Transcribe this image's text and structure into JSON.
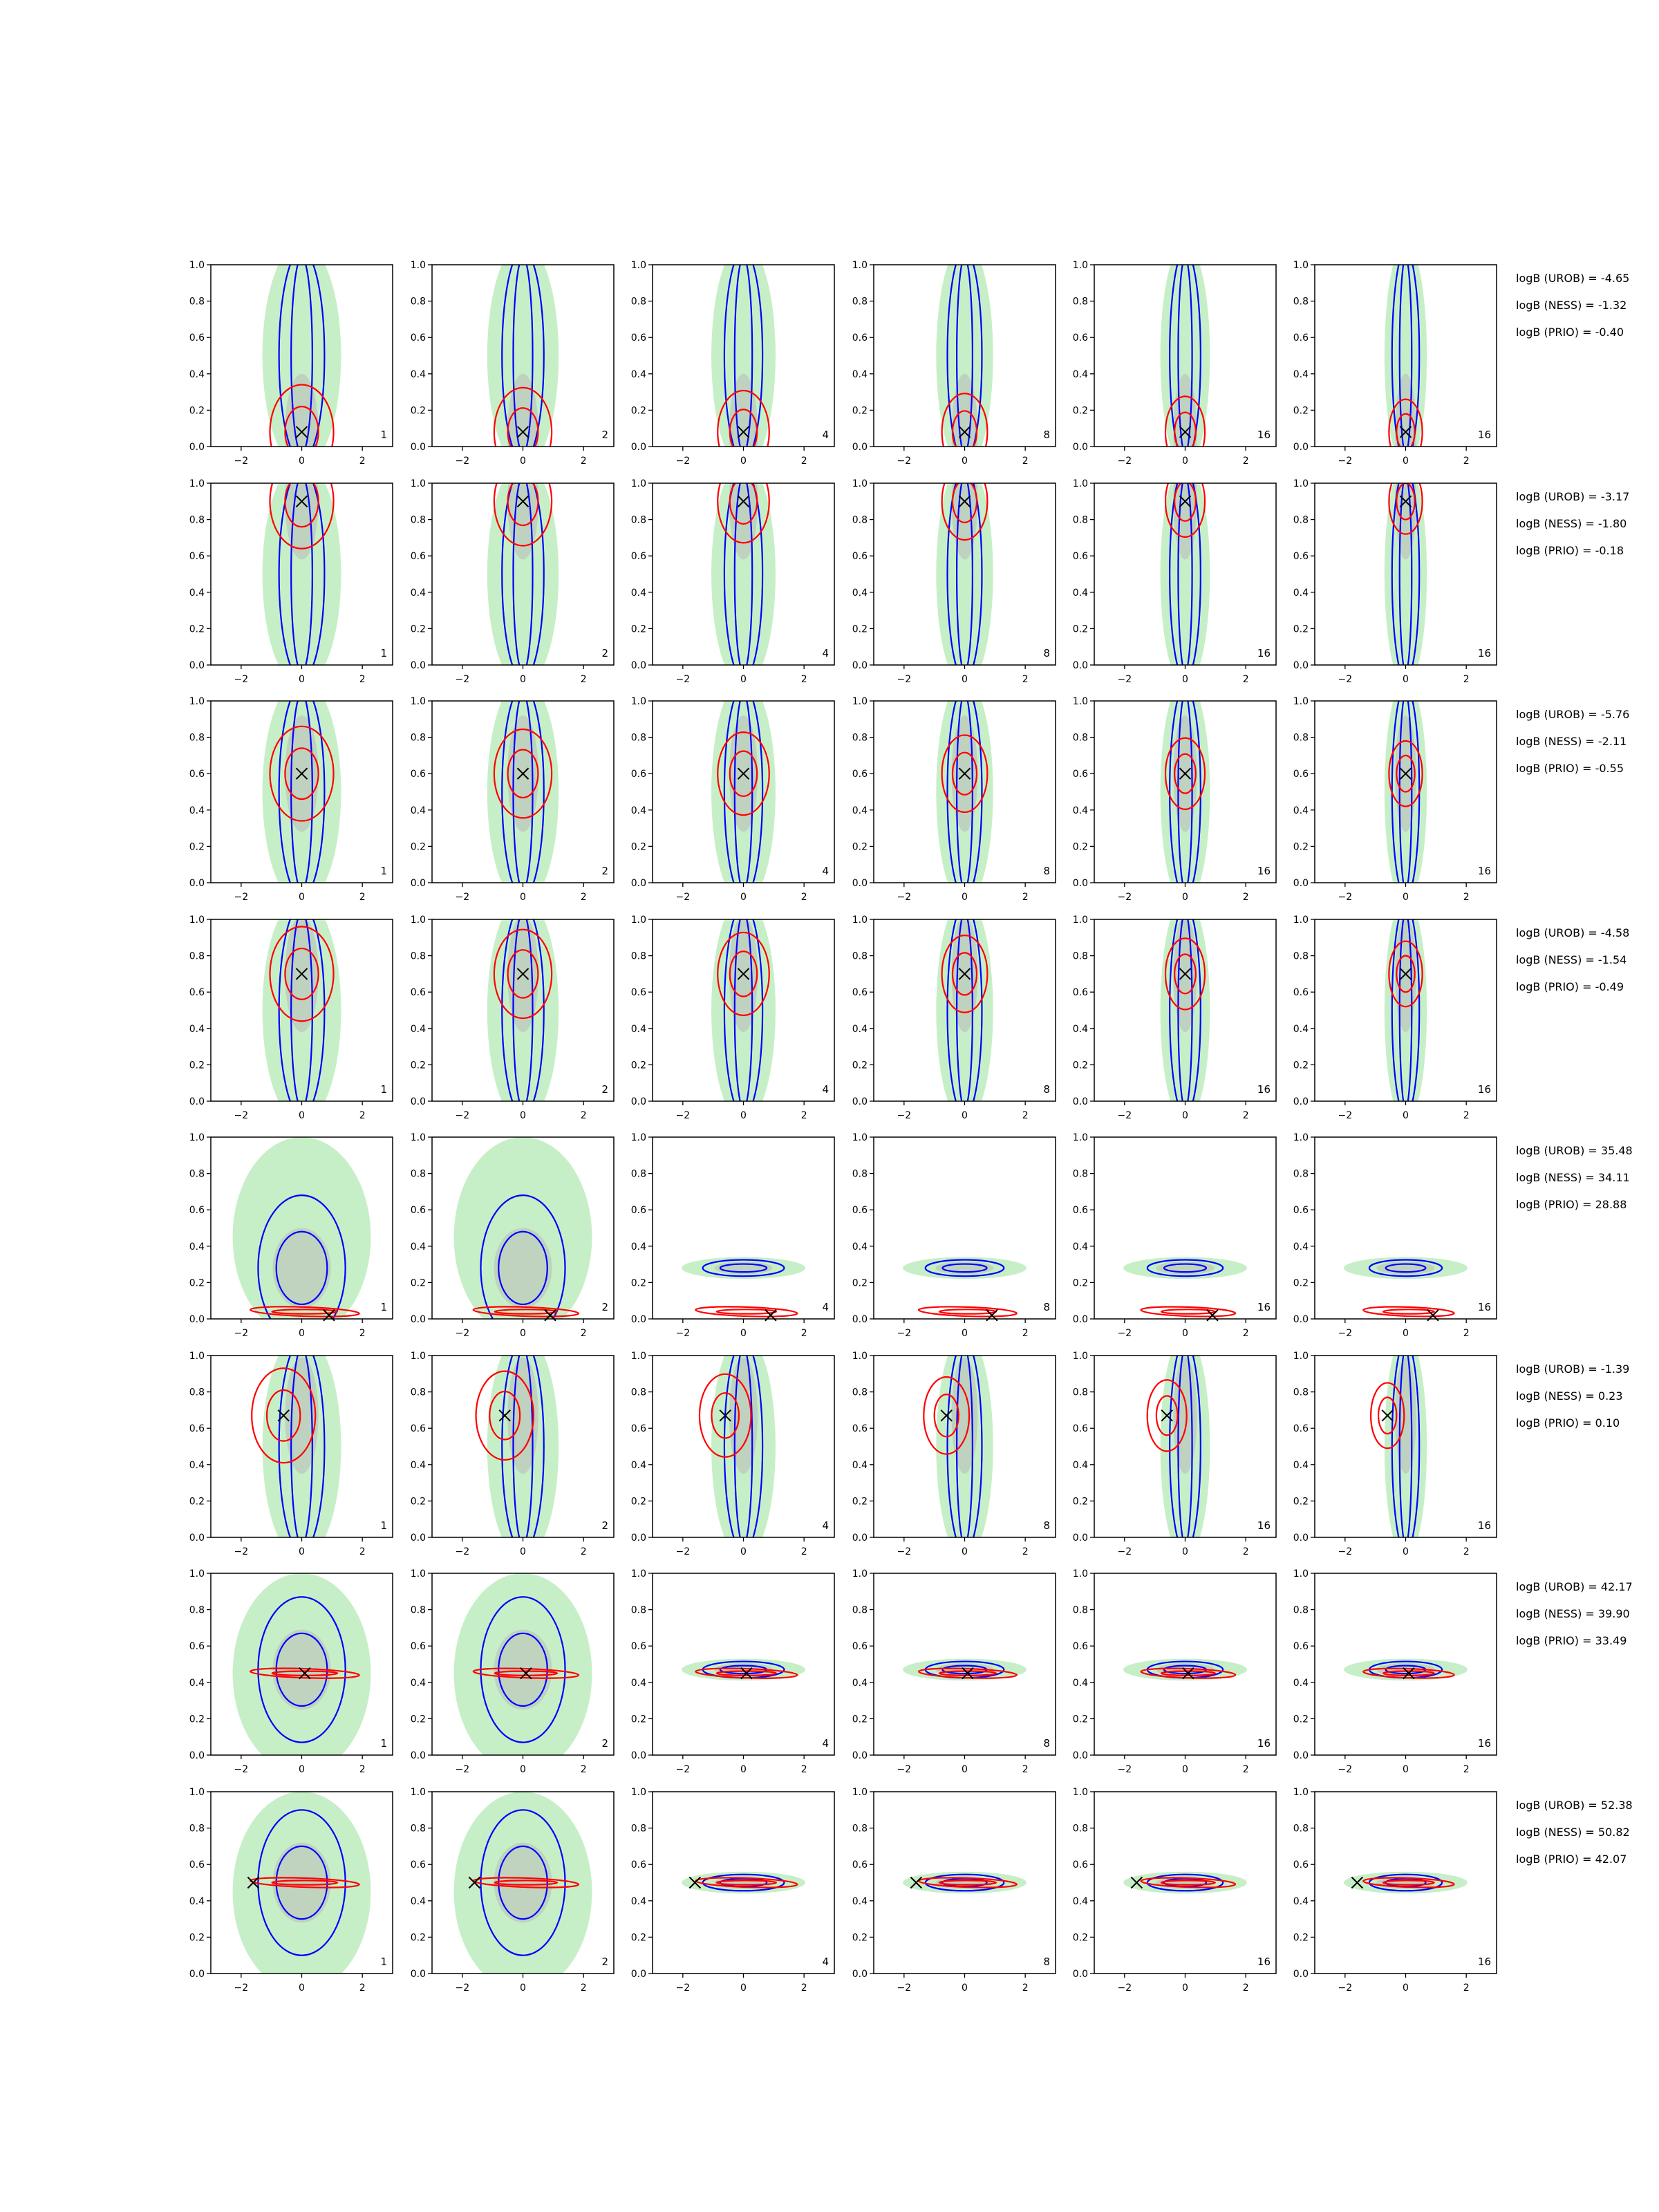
{
  "chart_data": {
    "type": "contour",
    "grid": {
      "rows": 8,
      "cols": 6
    },
    "xlim": [
      -3,
      3
    ],
    "ylim": [
      0,
      1
    ],
    "xticks": [
      -2,
      0,
      2
    ],
    "xtick_labels": [
      "−2",
      "0",
      "2"
    ],
    "yticks": [
      0,
      0.2,
      0.4,
      0.6,
      0.8,
      1.0
    ],
    "ytick_labels": [
      "0.0",
      "0.2",
      "0.4",
      "0.6",
      "0.8",
      "1.0"
    ],
    "colors": {
      "fill_outer": "#c7efc7",
      "fill_inner": "#b8b8b8",
      "blue": "#0000ff",
      "red": "#ff0000",
      "marker": "#000000"
    },
    "legend_position": "right",
    "column_labels": [
      "1",
      "2",
      "4",
      "8",
      "16",
      "16"
    ],
    "rows": [
      {
        "marker": [
          0.0,
          0.08
        ],
        "mode": "vert",
        "logB": [
          "logB (UROB) = -4.65",
          "logB (NESS) = -1.32",
          "logB (PRIO) = -0.40"
        ]
      },
      {
        "marker": [
          0.0,
          0.9
        ],
        "mode": "vert",
        "logB": [
          "logB (UROB) = -3.17",
          "logB (NESS) = -1.80",
          "logB (PRIO) = -0.18"
        ]
      },
      {
        "marker": [
          0.0,
          0.6
        ],
        "mode": "vert",
        "logB": [
          "logB (UROB) = -5.76",
          "logB (NESS) = -2.11",
          "logB (PRIO) = -0.55"
        ]
      },
      {
        "marker": [
          0.0,
          0.7
        ],
        "mode": "vert",
        "logB": [
          "logB (UROB) = -4.58",
          "logB (NESS) = -1.54",
          "logB (PRIO) = -0.49"
        ]
      },
      {
        "marker": [
          0.9,
          0.02
        ],
        "mode": "horiz",
        "blue_y": 0.28,
        "red_y": 0.04,
        "logB": [
          "logB (UROB) = 35.48",
          "logB (NESS) = 34.11",
          "logB (PRIO) = 28.88"
        ]
      },
      {
        "marker": [
          -0.6,
          0.67
        ],
        "mode": "vert",
        "logB": [
          "logB (UROB) = -1.39",
          "logB (NESS) = 0.23",
          "logB (PRIO) = 0.10"
        ]
      },
      {
        "marker": [
          0.1,
          0.45
        ],
        "mode": "horiz",
        "blue_y": 0.47,
        "red_y": 0.45,
        "logB": [
          "logB (UROB) = 42.17",
          "logB (NESS) = 39.90",
          "logB (PRIO) = 33.49"
        ]
      },
      {
        "marker": [
          -1.6,
          0.5
        ],
        "mode": "horiz",
        "blue_y": 0.5,
        "red_y": 0.5,
        "logB": [
          "logB (UROB) = 52.38",
          "logB (NESS) = 50.82",
          "logB (PRIO) = 42.07"
        ]
      }
    ]
  }
}
